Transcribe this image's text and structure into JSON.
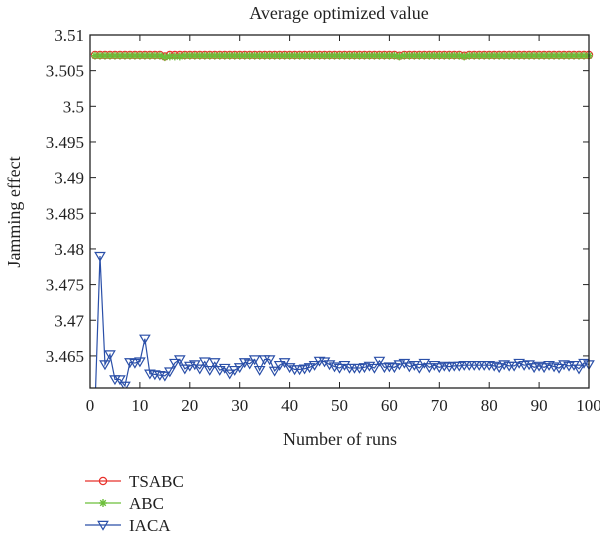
{
  "chart_data": {
    "type": "line",
    "title": "Average optimized value",
    "xlabel": "Number of runs",
    "ylabel": "Jamming effect",
    "xlim": [
      0,
      100
    ],
    "ylim": [
      3.4605,
      3.51
    ],
    "xticks": [
      0,
      10,
      20,
      30,
      40,
      50,
      60,
      70,
      80,
      90,
      100
    ],
    "xtick_labels": [
      "0",
      "10",
      "20",
      "30",
      "40",
      "50",
      "60",
      "70",
      "80",
      "90",
      "100"
    ],
    "yticks": [
      3.465,
      3.47,
      3.475,
      3.48,
      3.485,
      3.49,
      3.495,
      3.5,
      3.505,
      3.51
    ],
    "ytick_labels": [
      "3.465",
      "3.47",
      "3.475",
      "3.48",
      "3.485",
      "3.49",
      "3.495",
      "3.5",
      "3.505",
      "3.51"
    ],
    "grid": false,
    "legend_position": "below-left",
    "series": [
      {
        "name": "TSABC",
        "color": "#e8302a",
        "marker": "circle",
        "x": [
          1,
          2,
          3,
          4,
          5,
          6,
          7,
          8,
          9,
          10,
          11,
          12,
          13,
          14,
          15,
          16,
          17,
          18,
          19,
          20,
          21,
          22,
          23,
          24,
          25,
          26,
          27,
          28,
          29,
          30,
          31,
          32,
          33,
          34,
          35,
          36,
          37,
          38,
          39,
          40,
          41,
          42,
          43,
          44,
          45,
          46,
          47,
          48,
          49,
          50,
          51,
          52,
          53,
          54,
          55,
          56,
          57,
          58,
          59,
          60,
          61,
          62,
          63,
          64,
          65,
          66,
          67,
          68,
          69,
          70,
          71,
          72,
          73,
          74,
          75,
          76,
          77,
          78,
          79,
          80,
          81,
          82,
          83,
          84,
          85,
          86,
          87,
          88,
          89,
          90,
          91,
          92,
          93,
          94,
          95,
          96,
          97,
          98,
          99,
          100
        ],
        "y": [
          3.5072,
          3.5072,
          3.5072,
          3.5072,
          3.5072,
          3.5072,
          3.5072,
          3.5072,
          3.5072,
          3.5072,
          3.5072,
          3.5072,
          3.5072,
          3.5072,
          3.507,
          3.5072,
          3.5072,
          3.5072,
          3.5072,
          3.5072,
          3.5072,
          3.5072,
          3.5072,
          3.5072,
          3.5072,
          3.5072,
          3.5072,
          3.5072,
          3.5072,
          3.5072,
          3.5072,
          3.5072,
          3.5072,
          3.5072,
          3.5072,
          3.5072,
          3.5072,
          3.5072,
          3.5072,
          3.5072,
          3.5072,
          3.5072,
          3.5072,
          3.5072,
          3.5072,
          3.5072,
          3.5072,
          3.5072,
          3.5072,
          3.5072,
          3.5072,
          3.5072,
          3.5072,
          3.5072,
          3.5072,
          3.5072,
          3.5072,
          3.5072,
          3.5072,
          3.5072,
          3.5072,
          3.5071,
          3.5072,
          3.5072,
          3.5072,
          3.5072,
          3.5072,
          3.5072,
          3.5072,
          3.5072,
          3.5072,
          3.5072,
          3.5072,
          3.5072,
          3.5071,
          3.5072,
          3.5072,
          3.5072,
          3.5072,
          3.5072,
          3.5072,
          3.5072,
          3.5072,
          3.5072,
          3.5072,
          3.5072,
          3.5072,
          3.5072,
          3.5072,
          3.5072,
          3.5072,
          3.5072,
          3.5072,
          3.5072,
          3.5072,
          3.5072,
          3.5072,
          3.5072,
          3.5072,
          3.5072
        ]
      },
      {
        "name": "ABC",
        "color": "#6cbf3a",
        "marker": "star",
        "x": [
          1,
          2,
          3,
          4,
          5,
          6,
          7,
          8,
          9,
          10,
          11,
          12,
          13,
          14,
          15,
          16,
          17,
          18,
          19,
          20,
          21,
          22,
          23,
          24,
          25,
          26,
          27,
          28,
          29,
          30,
          31,
          32,
          33,
          34,
          35,
          36,
          37,
          38,
          39,
          40,
          41,
          42,
          43,
          44,
          45,
          46,
          47,
          48,
          49,
          50,
          51,
          52,
          53,
          54,
          55,
          56,
          57,
          58,
          59,
          60,
          61,
          62,
          63,
          64,
          65,
          66,
          67,
          68,
          69,
          70,
          71,
          72,
          73,
          74,
          75,
          76,
          77,
          78,
          79,
          80,
          81,
          82,
          83,
          84,
          85,
          86,
          87,
          88,
          89,
          90,
          91,
          92,
          93,
          94,
          95,
          96,
          97,
          98,
          99,
          100
        ],
        "y": [
          3.5071,
          3.5071,
          3.5071,
          3.5071,
          3.5071,
          3.5071,
          3.5071,
          3.5071,
          3.5071,
          3.5071,
          3.5071,
          3.5071,
          3.5071,
          3.5071,
          3.5069,
          3.507,
          3.507,
          3.507,
          3.5071,
          3.5071,
          3.5071,
          3.5071,
          3.5071,
          3.5071,
          3.5071,
          3.5071,
          3.5071,
          3.5071,
          3.5071,
          3.5071,
          3.5071,
          3.5071,
          3.5071,
          3.5071,
          3.5071,
          3.5071,
          3.5071,
          3.5071,
          3.5071,
          3.5071,
          3.5071,
          3.5071,
          3.5071,
          3.5071,
          3.5071,
          3.5071,
          3.5071,
          3.5071,
          3.5071,
          3.5071,
          3.5071,
          3.5071,
          3.5071,
          3.5071,
          3.5071,
          3.5071,
          3.5071,
          3.5071,
          3.5071,
          3.5071,
          3.5071,
          3.507,
          3.5071,
          3.5071,
          3.5071,
          3.5071,
          3.5071,
          3.5071,
          3.5071,
          3.5071,
          3.5071,
          3.5071,
          3.5071,
          3.5071,
          3.507,
          3.5071,
          3.5071,
          3.5071,
          3.5071,
          3.5071,
          3.5071,
          3.5071,
          3.5071,
          3.5071,
          3.5071,
          3.5071,
          3.5071,
          3.5071,
          3.5071,
          3.5071,
          3.5071,
          3.5071,
          3.5071,
          3.5071,
          3.5071,
          3.5071,
          3.5071,
          3.5071,
          3.5071,
          3.5071
        ]
      },
      {
        "name": "IACA",
        "color": "#2a4fa8",
        "marker": "triangle-down",
        "x": [
          1,
          2,
          3,
          4,
          5,
          6,
          7,
          8,
          9,
          10,
          11,
          12,
          13,
          14,
          15,
          16,
          17,
          18,
          19,
          20,
          21,
          22,
          23,
          24,
          25,
          26,
          27,
          28,
          29,
          30,
          31,
          32,
          33,
          34,
          35,
          36,
          37,
          38,
          39,
          40,
          41,
          42,
          43,
          44,
          45,
          46,
          47,
          48,
          49,
          50,
          51,
          52,
          53,
          54,
          55,
          56,
          57,
          58,
          59,
          60,
          61,
          62,
          63,
          64,
          65,
          66,
          67,
          68,
          69,
          70,
          71,
          72,
          73,
          74,
          75,
          76,
          77,
          78,
          79,
          80,
          81,
          82,
          83,
          84,
          85,
          86,
          87,
          88,
          89,
          90,
          91,
          92,
          93,
          94,
          95,
          96,
          97,
          98,
          99,
          100
        ],
        "y": [
          3.458,
          3.479,
          3.4638,
          3.4652,
          3.4617,
          3.4617,
          3.4608,
          3.4641,
          3.464,
          3.4642,
          3.4674,
          3.4625,
          3.4624,
          3.4623,
          3.4622,
          3.4628,
          3.464,
          3.4645,
          3.4632,
          3.4636,
          3.4638,
          3.4632,
          3.4642,
          3.463,
          3.4641,
          3.463,
          3.4633,
          3.4625,
          3.463,
          3.4634,
          3.4641,
          3.4639,
          3.4645,
          3.463,
          3.4645,
          3.4645,
          3.4629,
          3.4637,
          3.4641,
          3.4634,
          3.4631,
          3.4631,
          3.4632,
          3.4634,
          3.4637,
          3.4643,
          3.4642,
          3.4638,
          3.4635,
          3.4633,
          3.4637,
          3.4633,
          3.4633,
          3.4633,
          3.4634,
          3.4636,
          3.4633,
          3.4643,
          3.4634,
          3.4635,
          3.4634,
          3.4638,
          3.464,
          3.4635,
          3.4637,
          3.4633,
          3.464,
          3.4634,
          3.4637,
          3.4634,
          3.4636,
          3.4635,
          3.4636,
          3.4636,
          3.4637,
          3.4637,
          3.4637,
          3.4637,
          3.4637,
          3.4637,
          3.4636,
          3.4634,
          3.4638,
          3.4636,
          3.4636,
          3.464,
          3.4637,
          3.4638,
          3.4634,
          3.4636,
          3.4634,
          3.4637,
          3.4635,
          3.4633,
          3.4638,
          3.4636,
          3.4637,
          3.4632,
          3.464,
          3.4638
        ]
      }
    ]
  }
}
